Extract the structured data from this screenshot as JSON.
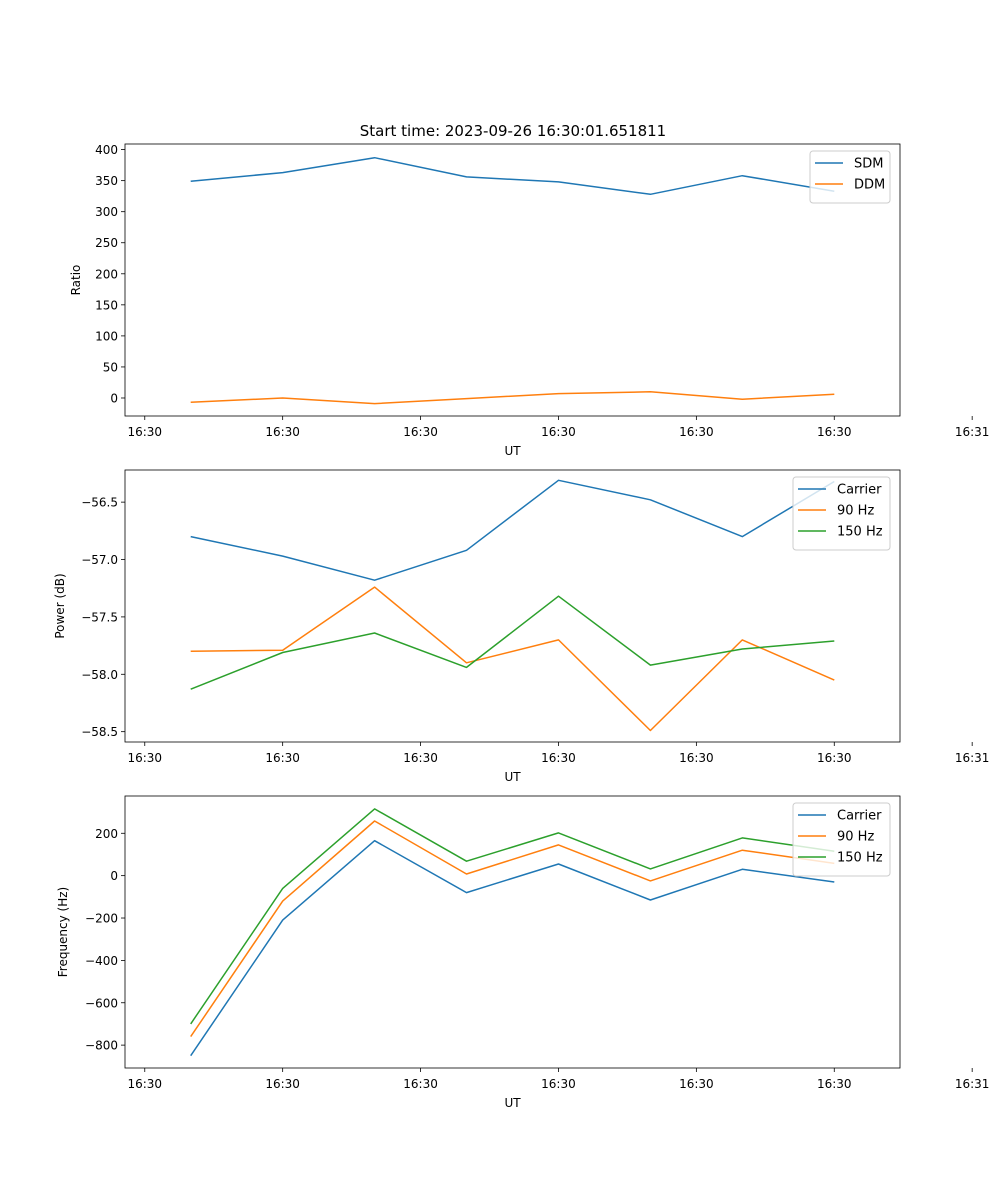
{
  "figure_title": "Start time: 2023-09-26 16:30:01.651811",
  "colors": {
    "blue": "#1f77b4",
    "orange": "#ff7f0e",
    "green": "#2ca02c",
    "axis": "#000000"
  },
  "chart_data": [
    {
      "type": "line",
      "title": "Start time: 2023-09-26 16:30:01.651811",
      "xlabel": "UT",
      "ylabel": "Ratio",
      "x": [
        1,
        2,
        3,
        4,
        5,
        6,
        7,
        8
      ],
      "xlim": [
        0.285,
        8.715
      ],
      "x_ticks": [
        0.5,
        2,
        3.5,
        5,
        6.5,
        8,
        9.5
      ],
      "x_tick_labels": [
        "16:30",
        "16:30",
        "16:30",
        "16:30",
        "16:30",
        "16:30",
        "16:31"
      ],
      "ylim": [
        -29,
        409
      ],
      "y_ticks": [
        0,
        50,
        100,
        150,
        200,
        250,
        300,
        350,
        400
      ],
      "y_tick_labels": [
        "0",
        "50",
        "100",
        "150",
        "200",
        "250",
        "300",
        "350",
        "400"
      ],
      "legend_position": "top-right",
      "series": [
        {
          "name": "SDM",
          "color": "#1f77b4",
          "values": [
            349,
            363,
            387,
            356,
            348,
            328,
            358,
            333
          ]
        },
        {
          "name": "DDM",
          "color": "#ff7f0e",
          "values": [
            -7,
            0,
            -9,
            -1,
            7,
            10,
            -2,
            6
          ]
        }
      ]
    },
    {
      "type": "line",
      "title": "",
      "xlabel": "UT",
      "ylabel": "Power (dB)",
      "x": [
        1,
        2,
        3,
        4,
        5,
        6,
        7,
        8
      ],
      "xlim": [
        0.285,
        8.715
      ],
      "x_ticks": [
        0.5,
        2,
        3.5,
        5,
        6.5,
        8,
        9.5
      ],
      "x_tick_labels": [
        "16:30",
        "16:30",
        "16:30",
        "16:30",
        "16:30",
        "16:30",
        "16:31"
      ],
      "ylim": [
        -58.59,
        -56.22
      ],
      "y_ticks": [
        -58.5,
        -58.0,
        -57.5,
        -57.0,
        -56.5
      ],
      "y_tick_labels": [
        "−58.5",
        "−58.0",
        "−57.5",
        "−57.0",
        "−56.5"
      ],
      "legend_position": "top-right",
      "series": [
        {
          "name": "Carrier",
          "color": "#1f77b4",
          "values": [
            -56.8,
            -56.97,
            -57.18,
            -56.92,
            -56.31,
            -56.48,
            -56.8,
            -56.32
          ]
        },
        {
          "name": "90 Hz",
          "color": "#ff7f0e",
          "values": [
            -57.8,
            -57.79,
            -57.24,
            -57.9,
            -57.7,
            -58.49,
            -57.7,
            -58.05
          ]
        },
        {
          "name": "150 Hz",
          "color": "#2ca02c",
          "values": [
            -58.13,
            -57.81,
            -57.64,
            -57.94,
            -57.32,
            -57.92,
            -57.78,
            -57.71
          ]
        }
      ]
    },
    {
      "type": "line",
      "title": "",
      "xlabel": "UT",
      "ylabel": "Frequency (Hz)",
      "x": [
        1,
        2,
        3,
        4,
        5,
        6,
        7,
        8
      ],
      "xlim": [
        0.285,
        8.715
      ],
      "x_ticks": [
        0.5,
        2,
        3.5,
        5,
        6.5,
        8,
        9.5
      ],
      "x_tick_labels": [
        "16:30",
        "16:30",
        "16:30",
        "16:30",
        "16:30",
        "16:30",
        "16:31"
      ],
      "ylim": [
        -908,
        376
      ],
      "y_ticks": [
        -800,
        -600,
        -400,
        -200,
        0,
        200
      ],
      "y_tick_labels": [
        "−800",
        "−600",
        "−400",
        "−200",
        "0",
        "200"
      ],
      "legend_position": "top-right",
      "series": [
        {
          "name": "Carrier",
          "color": "#1f77b4",
          "values": [
            -850,
            -210,
            165,
            -80,
            55,
            -115,
            30,
            -30
          ]
        },
        {
          "name": "90 Hz",
          "color": "#ff7f0e",
          "values": [
            -760,
            -120,
            258,
            8,
            145,
            -25,
            120,
            58
          ]
        },
        {
          "name": "150 Hz",
          "color": "#2ca02c",
          "values": [
            -700,
            -60,
            315,
            68,
            202,
            32,
            178,
            115
          ]
        }
      ]
    }
  ]
}
